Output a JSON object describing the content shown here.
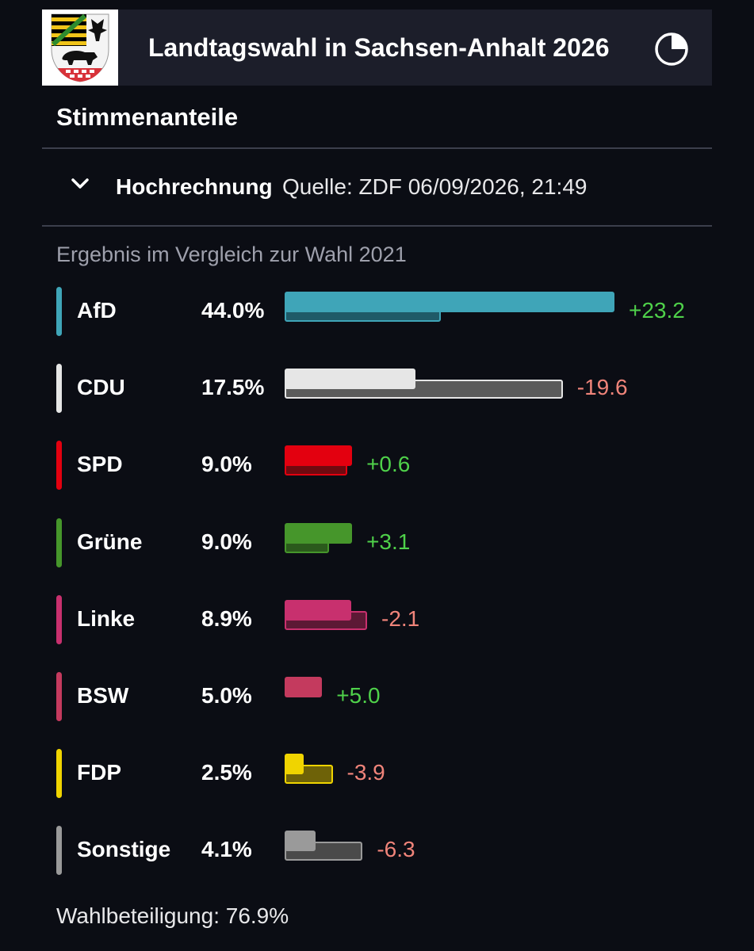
{
  "header": {
    "title": "Landtagswahl in Sachsen-Anhalt 2026",
    "crest_icon": "sachsen-anhalt-coat-of-arms",
    "pie_icon": "pie-chart-icon"
  },
  "section": {
    "title": "Stimmenanteile"
  },
  "projection": {
    "label": "Hochrechnung",
    "source": "Quelle: ZDF 06/09/2026, 21:49",
    "toggle_icon": "chevron-down-icon"
  },
  "chart_data": {
    "type": "bar",
    "subtitle": "Ergebnis im Vergleich zur Wahl 2021",
    "categories": [
      "AfD",
      "CDU",
      "SPD",
      "Grüne",
      "Linke",
      "BSW",
      "FDP",
      "Sonstige"
    ],
    "series": [
      {
        "values": [
          44.0,
          17.5,
          9.0,
          9.0,
          8.9,
          5.0,
          2.5,
          4.1
        ]
      },
      {
        "values": [
          20.8,
          37.1,
          8.4,
          5.9,
          11.0,
          0,
          6.4,
          10.4
        ]
      }
    ],
    "value_labels": [
      "44.0%",
      "17.5%",
      "9.0%",
      "9.0%",
      "8.9%",
      "5.0%",
      "2.5%",
      "4.1%"
    ],
    "diff_labels": [
      "+23.2",
      "-19.6",
      "+0.6",
      "+3.1",
      "-2.1",
      "+5.0",
      "-3.9",
      "-6.3"
    ],
    "colors": [
      "#3fa5b8",
      "#e6e6e6",
      "#e3000f",
      "#46962b",
      "#c8306e",
      "#c43a5e",
      "#f0d400",
      "#9a9a9a"
    ],
    "prev_colors": [
      "#1f5a68",
      "#5b5b5b",
      "#6f0a10",
      "#2b5a1c",
      "#5c1935",
      "#c43a5e",
      "#6e6208",
      "#4a4a4a"
    ],
    "positive_color": "#4fd14a",
    "negative_color": "#f0847a"
  },
  "footer": {
    "turnout": "Wahlbeteiligung: 76.9%"
  }
}
